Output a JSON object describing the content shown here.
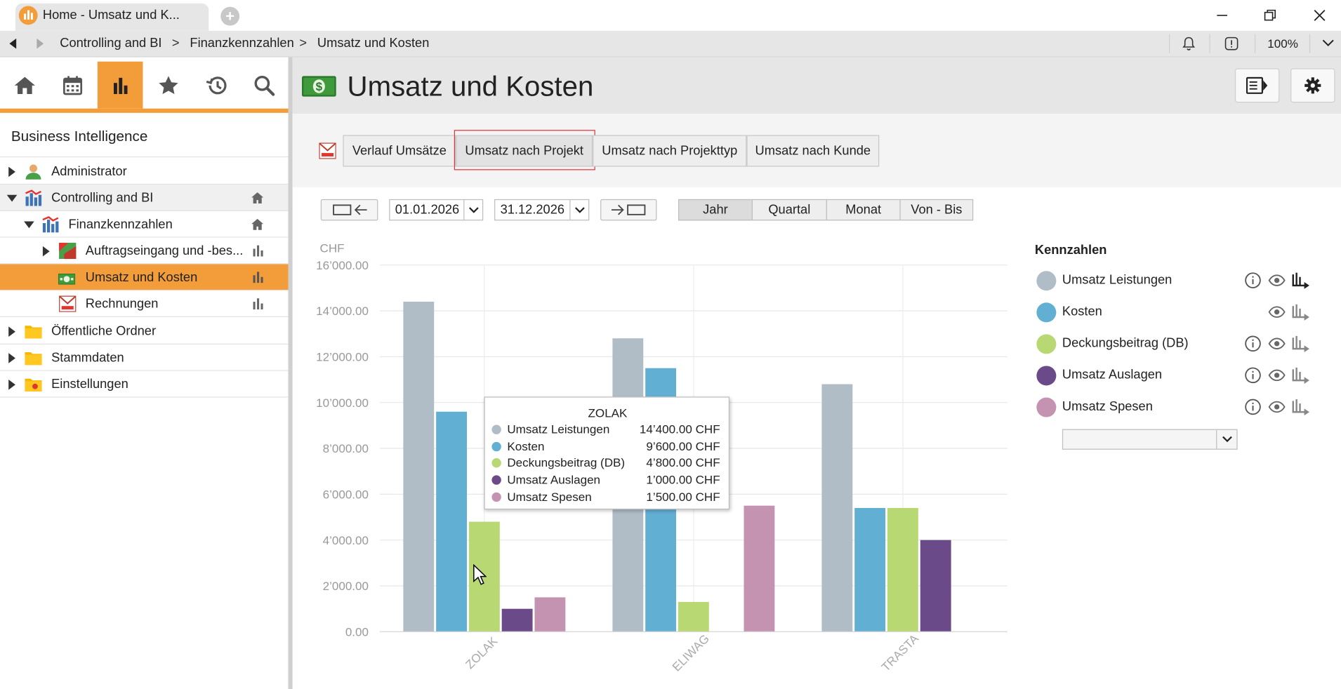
{
  "browser": {
    "tab_title": "Home - Umsatz und K...",
    "breadcrumb": [
      "Controlling and BI",
      "Finanzkennzahlen",
      "Umsatz und Kosten"
    ],
    "breadcrumb_sep": ">",
    "zoom": "100%"
  },
  "sidebar": {
    "title": "Business Intelligence",
    "items": [
      {
        "label": "Administrator"
      },
      {
        "label": "Controlling and BI"
      },
      {
        "label": "Finanzkennzahlen"
      },
      {
        "label": "Auftragseingang und -bes..."
      },
      {
        "label": "Umsatz und Kosten"
      },
      {
        "label": "Rechnungen"
      },
      {
        "label": "Öffentliche Ordner"
      },
      {
        "label": "Stammdaten"
      },
      {
        "label": "Einstellungen"
      }
    ]
  },
  "page": {
    "title": "Umsatz und Kosten",
    "tabs": [
      "Verlauf Umsätze",
      "Umsatz nach Projekt",
      "Umsatz nach Projekttyp",
      "Umsatz nach Kunde"
    ],
    "date_from": "01.01.2026",
    "date_to": "31.12.2026",
    "periods": [
      "Jahr",
      "Quartal",
      "Monat",
      "Von - Bis"
    ]
  },
  "legend": {
    "title": "Kennzahlen",
    "items": [
      {
        "label": "Umsatz Leistungen",
        "color": "#b0bcc6"
      },
      {
        "label": "Kosten",
        "color": "#62afd4"
      },
      {
        "label": "Deckungsbeitrag (DB)",
        "color": "#b8d873"
      },
      {
        "label": "Umsatz Auslagen",
        "color": "#6b4a8a"
      },
      {
        "label": "Umsatz Spesen",
        "color": "#c493b1"
      }
    ]
  },
  "tooltip": {
    "title": "ZOLAK",
    "rows": [
      {
        "name": "Umsatz Leistungen",
        "value": "14’400.00 CHF"
      },
      {
        "name": "Kosten",
        "value": "9’600.00 CHF"
      },
      {
        "name": "Deckungsbeitrag (DB)",
        "value": "4’800.00 CHF"
      },
      {
        "name": "Umsatz Auslagen",
        "value": "1’000.00 CHF"
      },
      {
        "name": "Umsatz Spesen",
        "value": "1’500.00 CHF"
      }
    ]
  },
  "chart_data": {
    "type": "bar",
    "ylabel": "CHF",
    "ylim": [
      0,
      16000
    ],
    "yticks": [
      0,
      2000,
      4000,
      6000,
      8000,
      10000,
      12000,
      14000,
      16000
    ],
    "ytick_labels": [
      "0.00",
      "2’000.00",
      "4’000.00",
      "6’000.00",
      "8’000.00",
      "10’000.00",
      "12’000.00",
      "14’000.00",
      "16’000.00"
    ],
    "categories": [
      "ZOLAK",
      "ELIWAG",
      "TRASTA"
    ],
    "grid": true,
    "legend": "right",
    "series": [
      {
        "name": "Umsatz Leistungen",
        "color": "#b0bcc6",
        "values": [
          14400,
          12800,
          10800
        ]
      },
      {
        "name": "Kosten",
        "color": "#62afd4",
        "values": [
          9600,
          11500,
          5400
        ]
      },
      {
        "name": "Deckungsbeitrag (DB)",
        "color": "#b8d873",
        "values": [
          4800,
          1300,
          5400
        ]
      },
      {
        "name": "Umsatz Auslagen",
        "color": "#6b4a8a",
        "values": [
          1000,
          0,
          4000
        ]
      },
      {
        "name": "Umsatz Spesen",
        "color": "#c493b1",
        "values": [
          1500,
          5500,
          0
        ]
      }
    ]
  }
}
